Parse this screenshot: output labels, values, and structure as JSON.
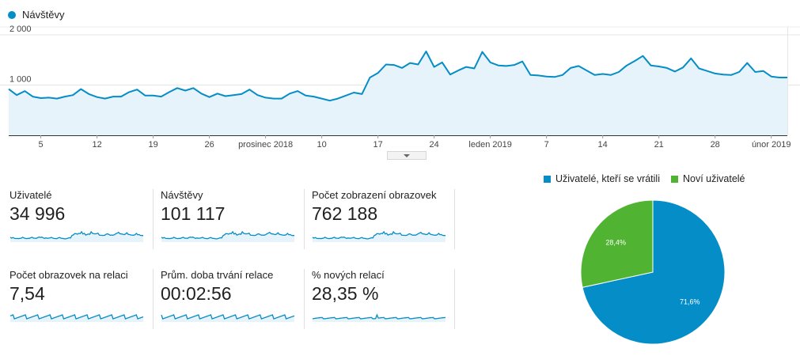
{
  "main_chart": {
    "legend": "Návštěvy",
    "y_ticks": [
      "2 000",
      "1 000"
    ],
    "x_ticks": [
      "5",
      "12",
      "19",
      "26",
      "prosinec 2018",
      "10",
      "17",
      "24",
      "leden 2019",
      "7",
      "14",
      "21",
      "28",
      "únor 2019"
    ]
  },
  "metrics": [
    {
      "label": "Uživatelé",
      "value": "34 996"
    },
    {
      "label": "Návštěvy",
      "value": "101 117"
    },
    {
      "label": "Počet zobrazení obrazovek",
      "value": "762 188"
    },
    {
      "label": "Počet obrazovek na relaci",
      "value": "7,54"
    },
    {
      "label": "Prům. doba trvání relace",
      "value": "00:02:56"
    },
    {
      "label": "% nových relací",
      "value": "28,35 %"
    }
  ],
  "pie": {
    "legend": [
      "Uživatelé, kteří se vrátili",
      "Noví uživatelé"
    ],
    "labels": [
      "71,6%",
      "28,4%"
    ]
  },
  "colors": {
    "line": "#058dc7",
    "area": "#e6f3fb",
    "returning": "#058dc7",
    "new": "#50b432"
  },
  "chart_data": [
    {
      "type": "area",
      "title": "",
      "series": [
        {
          "name": "Návštěvy",
          "values": [
            920,
            800,
            880,
            770,
            740,
            750,
            730,
            770,
            800,
            920,
            820,
            760,
            730,
            770,
            770,
            860,
            910,
            790,
            790,
            770,
            860,
            940,
            890,
            940,
            830,
            760,
            830,
            780,
            800,
            820,
            910,
            800,
            750,
            730,
            730,
            830,
            880,
            790,
            770,
            730,
            690,
            730,
            790,
            850,
            820,
            1150,
            1240,
            1410,
            1400,
            1340,
            1440,
            1410,
            1670,
            1360,
            1450,
            1210,
            1290,
            1360,
            1330,
            1660,
            1450,
            1390,
            1380,
            1400,
            1470,
            1200,
            1190,
            1170,
            1160,
            1200,
            1340,
            1380,
            1290,
            1200,
            1220,
            1200,
            1260,
            1390,
            1480,
            1580,
            1390,
            1370,
            1340,
            1270,
            1350,
            1530,
            1330,
            1280,
            1230,
            1210,
            1200,
            1260,
            1440,
            1260,
            1280,
            1170,
            1150,
            1150
          ]
        }
      ],
      "x_tick_labels": [
        "5",
        "12",
        "19",
        "26",
        "prosinec 2018",
        "10",
        "17",
        "24",
        "leden 2019",
        "7",
        "14",
        "21",
        "28",
        "únor 2019"
      ],
      "ylim": [
        0,
        2000
      ],
      "y_ticks": [
        1000,
        2000
      ],
      "grid": true,
      "legend": "top-left"
    },
    {
      "type": "pie",
      "categories": [
        "Uživatelé, kteří se vrátili",
        "Noví uživatelé"
      ],
      "values": [
        71.6,
        28.4
      ],
      "legend": "top"
    }
  ]
}
